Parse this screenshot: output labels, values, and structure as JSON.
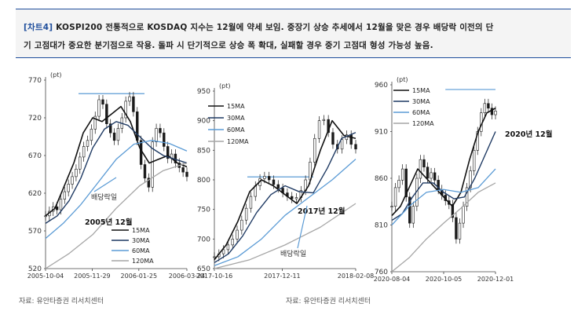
{
  "header": {
    "tag": "[차트4]",
    "text_line1": " KOSPI200 전통적으로 KOSDAQ 지수는 12월에 약세 보임. 중장기 상승 추세에서 12월을 맞은 경우 배당락 이전의 단",
    "text_line2": "기 고점대가 중요한 분기점으로 작용. 돌파 시 단기적으로 상승 폭 확대, 실패할 경우 중기 고점대 형성 가능성 높음."
  },
  "sources": {
    "left": "자료: 유안타증권 리서치센터",
    "right": "자료: 유안타증권 리서치센터"
  },
  "colors": {
    "candle": "#1a1a1a",
    "ma15": "#111111",
    "ma30": "#1f3a63",
    "ma60": "#5b9bd5",
    "ma120": "#a6a6a6",
    "ref_line": "#5b9bd5"
  },
  "chart_data": [
    {
      "type": "line",
      "title": "",
      "unit": "(pt)",
      "ylim": [
        520,
        770
      ],
      "yticks": [
        520,
        570,
        620,
        670,
        720,
        770
      ],
      "xticks": [
        "2005-10-04",
        "2005-11-29",
        "2006-01-25",
        "2006-03-24"
      ],
      "legend": [
        "15MA",
        "30MA",
        "60MA",
        "120MA"
      ],
      "legend_position": "bottom-right",
      "annotations": [
        {
          "text": "배당락일",
          "arrow": true
        },
        {
          "text": "2005년 12월"
        }
      ],
      "ref_line_value": 752,
      "series": [
        {
          "name": "15MA",
          "x": [
            0,
            8,
            16,
            24,
            32,
            40,
            48,
            56,
            64,
            72,
            80,
            88,
            96,
            104,
            112,
            120
          ],
          "values": [
            590,
            600,
            630,
            660,
            700,
            720,
            715,
            725,
            735,
            715,
            680,
            660,
            665,
            670,
            660,
            655
          ]
        },
        {
          "name": "30MA",
          "x": [
            0,
            10,
            20,
            30,
            40,
            50,
            60,
            70,
            80,
            90,
            100,
            110,
            120
          ],
          "values": [
            580,
            590,
            610,
            640,
            680,
            705,
            715,
            710,
            695,
            680,
            670,
            665,
            660
          ]
        },
        {
          "name": "60MA",
          "x": [
            0,
            15,
            30,
            45,
            60,
            75,
            90,
            105,
            120
          ],
          "values": [
            560,
            580,
            605,
            635,
            665,
            685,
            690,
            686,
            676
          ]
        },
        {
          "name": "120MA",
          "x": [
            0,
            20,
            40,
            60,
            80,
            100,
            120
          ],
          "values": [
            520,
            540,
            565,
            600,
            630,
            650,
            660
          ]
        }
      ],
      "candles": [
        590,
        596,
        602,
        598,
        612,
        622,
        632,
        642,
        652,
        668,
        682,
        690,
        705,
        722,
        744,
        738,
        712,
        700,
        690,
        706,
        720,
        742,
        748,
        728,
        690,
        658,
        640,
        628,
        688,
        706,
        700,
        682,
        666,
        672,
        660,
        654,
        648,
        642
      ]
    },
    {
      "type": "line",
      "title": "",
      "unit": "(pt)",
      "ylim": [
        650,
        950
      ],
      "yticks": [
        650,
        700,
        750,
        800,
        850,
        900,
        950
      ],
      "xticks": [
        "2017-10-16",
        "2017-12-11",
        "2018-02-08"
      ],
      "legend": [
        "15MA",
        "30MA",
        "60MA",
        "120MA"
      ],
      "legend_position": "top-left",
      "annotations": [
        {
          "text": "2017년 12월"
        },
        {
          "text": "배당락일",
          "arrow": true
        }
      ],
      "ref_line_value": 805,
      "series": [
        {
          "name": "15MA",
          "x": [
            0,
            10,
            20,
            30,
            40,
            50,
            60,
            70,
            80,
            90,
            100,
            110,
            120
          ],
          "values": [
            665,
            690,
            730,
            780,
            800,
            790,
            775,
            760,
            790,
            850,
            900,
            875,
            870
          ]
        },
        {
          "name": "30MA",
          "x": [
            0,
            12,
            24,
            36,
            48,
            60,
            72,
            84,
            96,
            108,
            120
          ],
          "values": [
            660,
            675,
            705,
            745,
            775,
            790,
            780,
            778,
            820,
            870,
            880
          ]
        },
        {
          "name": "60MA",
          "x": [
            0,
            20,
            40,
            60,
            80,
            100,
            120
          ],
          "values": [
            655,
            670,
            700,
            740,
            770,
            800,
            835
          ]
        },
        {
          "name": "120MA",
          "x": [
            0,
            30,
            60,
            90,
            120
          ],
          "values": [
            650,
            665,
            690,
            720,
            760
          ]
        }
      ],
      "candles": [
        670,
        675,
        682,
        690,
        700,
        715,
        732,
        752,
        772,
        790,
        802,
        806,
        800,
        792,
        786,
        778,
        772,
        768,
        770,
        782,
        800,
        830,
        870,
        900,
        902,
        880,
        860,
        852,
        868,
        876,
        860,
        852
      ]
    },
    {
      "type": "line",
      "title": "",
      "unit": "(pt)",
      "ylim": [
        760,
        960
      ],
      "yticks": [
        760,
        810,
        860,
        910,
        960
      ],
      "xticks": [
        "2020-08-04",
        "2020-10-05",
        "2020-12-01"
      ],
      "legend": [
        "15MA",
        "30MA",
        "60MA",
        "120MA"
      ],
      "legend_position": "top-left",
      "annotations": [
        {
          "text": "2020년 12월"
        }
      ],
      "ref_line_value": 955,
      "series": [
        {
          "name": "15MA",
          "x": [
            0,
            10,
            20,
            30,
            40,
            50,
            60,
            70,
            80,
            90,
            100,
            110,
            120
          ],
          "values": [
            820,
            830,
            850,
            870,
            860,
            850,
            840,
            830,
            845,
            880,
            910,
            930,
            935
          ]
        },
        {
          "name": "30MA",
          "x": [
            0,
            12,
            24,
            36,
            48,
            60,
            72,
            84,
            96,
            108,
            120
          ],
          "values": [
            815,
            822,
            840,
            855,
            855,
            845,
            838,
            840,
            860,
            885,
            910
          ]
        },
        {
          "name": "60MA",
          "x": [
            0,
            20,
            40,
            60,
            80,
            100,
            120
          ],
          "values": [
            810,
            830,
            845,
            848,
            845,
            850,
            870
          ]
        },
        {
          "name": "120MA",
          "x": [
            0,
            20,
            40,
            60,
            80,
            100,
            120
          ],
          "values": [
            760,
            775,
            795,
            812,
            828,
            845,
            855
          ]
        }
      ],
      "candles": [
        830,
        850,
        858,
        870,
        840,
        812,
        830,
        860,
        880,
        872,
        860,
        866,
        858,
        848,
        842,
        836,
        832,
        818,
        795,
        812,
        830,
        850,
        868,
        890,
        910,
        930,
        940,
        935,
        928,
        932
      ]
    }
  ]
}
